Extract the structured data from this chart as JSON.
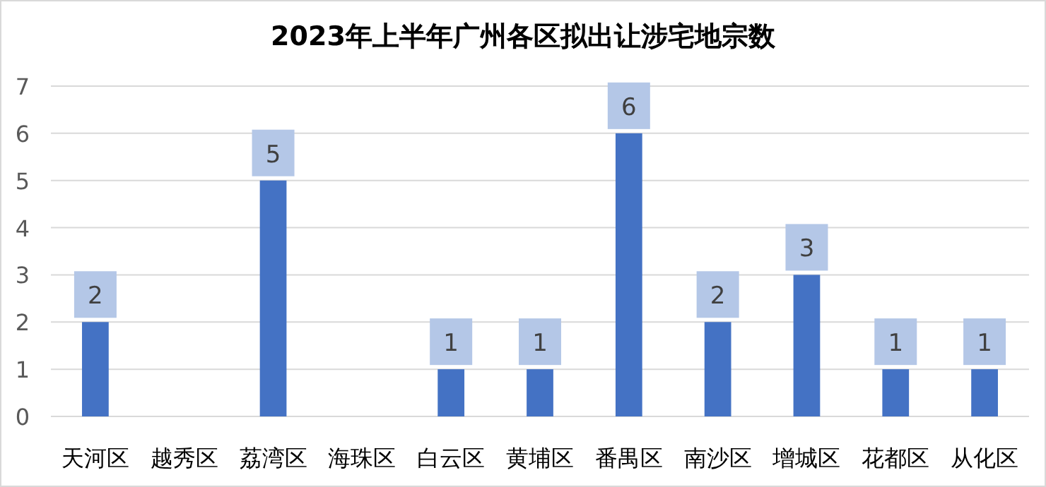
{
  "chart_data": {
    "type": "bar",
    "title": "2023年上半年广州各区拟出让涉宅地宗数",
    "categories": [
      "天河区",
      "越秀区",
      "荔湾区",
      "海珠区",
      "白云区",
      "黄埔区",
      "番禺区",
      "南沙区",
      "增城区",
      "花都区",
      "从化区"
    ],
    "values": [
      2,
      0,
      5,
      0,
      1,
      1,
      6,
      2,
      3,
      1,
      1
    ],
    "value_labels": [
      "2",
      null,
      "5",
      null,
      "1",
      "1",
      "6",
      "2",
      "3",
      "1",
      "1"
    ],
    "color": "#4472c4",
    "ylim": [
      0,
      7
    ],
    "yticks": [
      0,
      1,
      2,
      3,
      4,
      5,
      6,
      7
    ],
    "grid": "y"
  }
}
